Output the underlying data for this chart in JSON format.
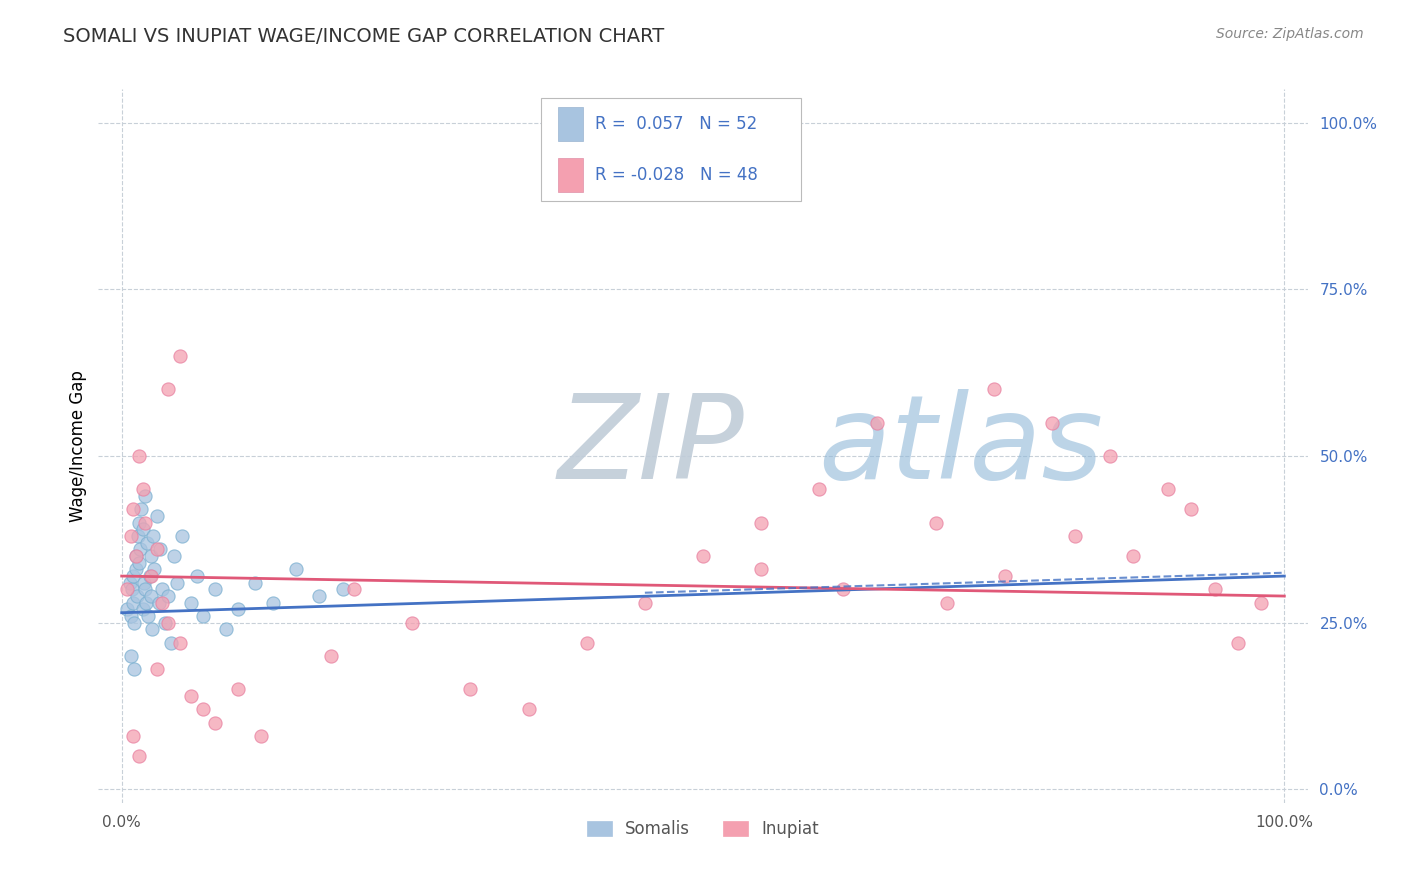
{
  "title": "SOMALI VS INUPIAT WAGE/INCOME GAP CORRELATION CHART",
  "source": "Source: ZipAtlas.com",
  "ylabel": "Wage/Income Gap",
  "xlim": [
    -0.02,
    1.02
  ],
  "ylim": [
    -0.02,
    1.05
  ],
  "x_ticks": [
    0.0,
    1.0
  ],
  "x_tick_labels": [
    "0.0%",
    "100.0%"
  ],
  "y_ticks_right": [
    0.0,
    0.25,
    0.5,
    0.75,
    1.0
  ],
  "y_tick_labels_right": [
    "0.0%",
    "25.0%",
    "50.0%",
    "75.0%",
    "100.0%"
  ],
  "somali_color": "#a8c4e0",
  "inupiat_color": "#f4a0b0",
  "somali_edge_color": "#7aafd0",
  "inupiat_edge_color": "#e880a0",
  "somali_line_color": "#4472c4",
  "inupiat_line_color": "#e05878",
  "somali_R": 0.057,
  "somali_N": 52,
  "inupiat_R": -0.028,
  "inupiat_N": 48,
  "legend_text_color": "#4472c4",
  "watermark_zip": "ZIP",
  "watermark_atlas": "atlas",
  "watermark_color_zip": "#c0ccd8",
  "watermark_color_atlas": "#90b8d8",
  "background_color": "#ffffff",
  "grid_color": "#c8d0d8",
  "title_color": "#333333",
  "source_color": "#888888",
  "somali_x": [
    0.005,
    0.007,
    0.008,
    0.009,
    0.01,
    0.01,
    0.011,
    0.012,
    0.012,
    0.013,
    0.014,
    0.015,
    0.015,
    0.016,
    0.017,
    0.018,
    0.018,
    0.019,
    0.02,
    0.02,
    0.021,
    0.022,
    0.023,
    0.024,
    0.025,
    0.025,
    0.026,
    0.027,
    0.028,
    0.03,
    0.032,
    0.033,
    0.035,
    0.037,
    0.04,
    0.042,
    0.045,
    0.048,
    0.052,
    0.06,
    0.065,
    0.07,
    0.08,
    0.09,
    0.1,
    0.115,
    0.13,
    0.15,
    0.17,
    0.19,
    0.008,
    0.011
  ],
  "somali_y": [
    0.27,
    0.31,
    0.26,
    0.3,
    0.28,
    0.32,
    0.25,
    0.35,
    0.33,
    0.29,
    0.38,
    0.4,
    0.34,
    0.36,
    0.42,
    0.39,
    0.27,
    0.31,
    0.44,
    0.3,
    0.28,
    0.37,
    0.26,
    0.32,
    0.35,
    0.29,
    0.24,
    0.38,
    0.33,
    0.41,
    0.28,
    0.36,
    0.3,
    0.25,
    0.29,
    0.22,
    0.35,
    0.31,
    0.38,
    0.28,
    0.32,
    0.26,
    0.3,
    0.24,
    0.27,
    0.31,
    0.28,
    0.33,
    0.29,
    0.3,
    0.2,
    0.18
  ],
  "inupiat_x": [
    0.005,
    0.008,
    0.01,
    0.012,
    0.015,
    0.018,
    0.02,
    0.025,
    0.03,
    0.035,
    0.04,
    0.05,
    0.06,
    0.08,
    0.1,
    0.04,
    0.05,
    0.2,
    0.25,
    0.3,
    0.35,
    0.4,
    0.45,
    0.5,
    0.55,
    0.6,
    0.65,
    0.7,
    0.75,
    0.8,
    0.85,
    0.9,
    0.92,
    0.94,
    0.96,
    0.98,
    0.82,
    0.87,
    0.76,
    0.71,
    0.01,
    0.015,
    0.55,
    0.62,
    0.03,
    0.07,
    0.12,
    0.18
  ],
  "inupiat_y": [
    0.3,
    0.38,
    0.42,
    0.35,
    0.5,
    0.45,
    0.4,
    0.32,
    0.36,
    0.28,
    0.25,
    0.22,
    0.14,
    0.1,
    0.15,
    0.6,
    0.65,
    0.3,
    0.25,
    0.15,
    0.12,
    0.22,
    0.28,
    0.35,
    0.4,
    0.45,
    0.55,
    0.4,
    0.6,
    0.55,
    0.5,
    0.45,
    0.42,
    0.3,
    0.22,
    0.28,
    0.38,
    0.35,
    0.32,
    0.28,
    0.08,
    0.05,
    0.33,
    0.3,
    0.18,
    0.12,
    0.08,
    0.2
  ]
}
